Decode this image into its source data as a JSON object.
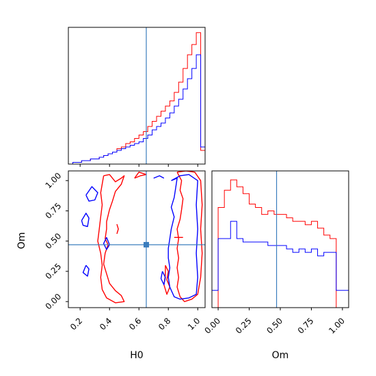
{
  "colors": {
    "red": "#ff0000",
    "blue": "#0000ff",
    "truth": "#3b7dbd",
    "axes": "#000000"
  },
  "chart_data": [
    {
      "type": "histogram",
      "panel": "H0 marginal",
      "xlim": [
        0.12,
        1.05
      ],
      "truth": 0.65,
      "bin_edges": [
        0.12,
        0.15,
        0.18,
        0.21,
        0.24,
        0.27,
        0.3,
        0.33,
        0.36,
        0.39,
        0.42,
        0.45,
        0.48,
        0.51,
        0.54,
        0.57,
        0.6,
        0.63,
        0.66,
        0.69,
        0.72,
        0.75,
        0.78,
        0.81,
        0.84,
        0.87,
        0.9,
        0.93,
        0.96,
        0.99,
        1.02,
        1.05
      ],
      "series": [
        {
          "name": "",
          "color": "red",
          "values": [
            0,
            1,
            1,
            2,
            2,
            3,
            3,
            4,
            5,
            6,
            7,
            9,
            10,
            12,
            13,
            15,
            17,
            19,
            22,
            25,
            28,
            31,
            34,
            37,
            42,
            48,
            56,
            64,
            70,
            77,
            8
          ]
        },
        {
          "name": "",
          "color": "blue",
          "values": [
            0,
            1,
            1,
            2,
            2,
            3,
            3,
            4,
            5,
            6,
            7,
            8,
            9,
            10,
            11,
            12,
            13,
            15,
            17,
            20,
            22,
            24,
            27,
            30,
            34,
            38,
            44,
            50,
            56,
            64,
            10
          ]
        }
      ],
      "xticks": [
        0.2,
        0.4,
        0.6,
        0.8,
        1.0
      ]
    },
    {
      "type": "contour",
      "panel": "H0 vs Om",
      "xlabel": "H0",
      "ylabel": "Om",
      "xlim": [
        0.12,
        1.05
      ],
      "ylim": [
        -0.05,
        1.08
      ],
      "xticks": [
        0.2,
        0.4,
        0.6,
        0.8,
        1.0
      ],
      "xtick_labels": [
        "0.2",
        "0.4",
        "0.6",
        "0.8",
        "1.0"
      ],
      "yticks": [
        0.0,
        0.25,
        0.5,
        0.75,
        1.0
      ],
      "ytick_labels": [
        "0.00",
        "0.25",
        "0.50",
        "0.75",
        "1.00"
      ],
      "truth": {
        "x": 0.65,
        "y": 0.47
      },
      "contours": [
        {
          "color": "red",
          "points": [
            [
              0.36,
              1.04
            ],
            [
              0.4,
              1.05
            ],
            [
              0.44,
              0.99
            ],
            [
              0.48,
              1.02
            ],
            [
              0.5,
              1.04
            ],
            [
              0.48,
              0.97
            ],
            [
              0.44,
              0.91
            ],
            [
              0.42,
              0.83
            ],
            [
              0.4,
              0.76
            ],
            [
              0.38,
              0.66
            ],
            [
              0.38,
              0.6
            ],
            [
              0.37,
              0.52
            ],
            [
              0.39,
              0.47
            ],
            [
              0.37,
              0.4
            ],
            [
              0.36,
              0.31
            ],
            [
              0.38,
              0.23
            ],
            [
              0.4,
              0.15
            ],
            [
              0.44,
              0.09
            ],
            [
              0.48,
              0.05
            ],
            [
              0.5,
              0.0
            ],
            [
              0.44,
              -0.01
            ],
            [
              0.38,
              0.03
            ],
            [
              0.35,
              0.1
            ],
            [
              0.34,
              0.2
            ],
            [
              0.35,
              0.3
            ],
            [
              0.34,
              0.4
            ],
            [
              0.32,
              0.5
            ],
            [
              0.33,
              0.6
            ],
            [
              0.34,
              0.7
            ],
            [
              0.35,
              0.8
            ],
            [
              0.34,
              0.9
            ],
            [
              0.36,
              1.04
            ]
          ]
        },
        {
          "color": "red",
          "points": [
            [
              0.57,
              1.02
            ],
            [
              0.61,
              1.04
            ],
            [
              0.65,
              1.05
            ],
            [
              0.6,
              1.07
            ],
            [
              0.57,
              1.02
            ]
          ]
        },
        {
          "color": "red",
          "points": [
            [
              0.86,
              1.07
            ],
            [
              0.89,
              1.0
            ],
            [
              0.88,
              0.92
            ],
            [
              0.9,
              0.85
            ],
            [
              0.89,
              0.76
            ],
            [
              0.88,
              0.68
            ],
            [
              0.86,
              0.6
            ],
            [
              0.87,
              0.52
            ],
            [
              0.86,
              0.44
            ],
            [
              0.87,
              0.36
            ],
            [
              0.86,
              0.28
            ],
            [
              0.87,
              0.2
            ],
            [
              0.86,
              0.12
            ],
            [
              0.88,
              0.04
            ],
            [
              0.91,
              0.0
            ],
            [
              0.96,
              0.02
            ],
            [
              1.0,
              0.06
            ],
            [
              1.02,
              0.2
            ],
            [
              1.03,
              0.4
            ],
            [
              1.02,
              0.6
            ],
            [
              1.03,
              0.8
            ],
            [
              1.02,
              1.0
            ],
            [
              0.98,
              1.07
            ],
            [
              0.92,
              1.08
            ],
            [
              0.86,
              1.07
            ]
          ]
        },
        {
          "color": "red",
          "points": [
            [
              0.78,
              0.3
            ],
            [
              0.8,
              0.25
            ],
            [
              0.79,
              0.18
            ],
            [
              0.81,
              0.12
            ],
            [
              0.79,
              0.06
            ],
            [
              0.77,
              0.14
            ],
            [
              0.78,
              0.22
            ],
            [
              0.78,
              0.3
            ]
          ]
        },
        {
          "color": "red",
          "points": [
            [
              0.84,
              0.53
            ],
            [
              0.9,
              0.53
            ]
          ]
        },
        {
          "color": "red",
          "points": [
            [
              0.45,
              0.64
            ],
            [
              0.46,
              0.6
            ],
            [
              0.45,
              0.56
            ]
          ]
        },
        {
          "color": "blue",
          "points": [
            [
              0.24,
              0.88
            ],
            [
              0.28,
              0.95
            ],
            [
              0.32,
              0.9
            ],
            [
              0.3,
              0.84
            ],
            [
              0.26,
              0.83
            ],
            [
              0.24,
              0.88
            ]
          ]
        },
        {
          "color": "blue",
          "points": [
            [
              0.21,
              0.67
            ],
            [
              0.24,
              0.73
            ],
            [
              0.26,
              0.69
            ],
            [
              0.25,
              0.62
            ],
            [
              0.22,
              0.63
            ],
            [
              0.21,
              0.67
            ]
          ]
        },
        {
          "color": "blue",
          "points": [
            [
              0.24,
              0.3
            ],
            [
              0.26,
              0.27
            ],
            [
              0.25,
              0.21
            ],
            [
              0.22,
              0.24
            ],
            [
              0.24,
              0.3
            ]
          ]
        },
        {
          "color": "blue",
          "points": [
            [
              0.7,
              1.02
            ],
            [
              0.74,
              1.04
            ],
            [
              0.77,
              1.02
            ]
          ]
        },
        {
          "color": "blue",
          "points": [
            [
              0.82,
              1.0
            ],
            [
              0.86,
              1.02
            ],
            [
              0.85,
              0.94
            ],
            [
              0.84,
              0.86
            ],
            [
              0.82,
              0.78
            ],
            [
              0.84,
              0.7
            ],
            [
              0.82,
              0.6
            ],
            [
              0.81,
              0.52
            ],
            [
              0.8,
              0.44
            ],
            [
              0.8,
              0.36
            ],
            [
              0.81,
              0.28
            ],
            [
              0.8,
              0.2
            ],
            [
              0.81,
              0.12
            ],
            [
              0.84,
              0.04
            ],
            [
              0.88,
              0.02
            ],
            [
              0.94,
              0.03
            ],
            [
              0.99,
              0.06
            ],
            [
              1.0,
              0.2
            ],
            [
              0.99,
              0.4
            ],
            [
              1.0,
              0.6
            ],
            [
              0.99,
              0.8
            ],
            [
              1.0,
              1.0
            ],
            [
              0.94,
              1.05
            ],
            [
              0.88,
              1.04
            ],
            [
              0.82,
              1.0
            ]
          ]
        },
        {
          "color": "blue",
          "points": [
            [
              0.38,
              0.53
            ],
            [
              0.4,
              0.47
            ],
            [
              0.38,
              0.43
            ],
            [
              0.36,
              0.48
            ],
            [
              0.38,
              0.53
            ]
          ]
        },
        {
          "color": "blue",
          "points": [
            [
              0.76,
              0.25
            ],
            [
              0.78,
              0.2
            ],
            [
              0.77,
              0.14
            ],
            [
              0.75,
              0.19
            ],
            [
              0.76,
              0.25
            ]
          ]
        }
      ]
    },
    {
      "type": "histogram",
      "panel": "Om marginal",
      "xlabel": "Om",
      "xlim": [
        -0.05,
        1.05
      ],
      "truth": 0.47,
      "xticks": [
        0.0,
        0.25,
        0.5,
        0.75,
        1.0
      ],
      "xtick_labels": [
        "0.00",
        "0.25",
        "0.50",
        "0.75",
        "1.00"
      ],
      "bin_edges": [
        -0.05,
        0.0,
        0.05,
        0.1,
        0.15,
        0.2,
        0.25,
        0.3,
        0.35,
        0.4,
        0.45,
        0.5,
        0.55,
        0.6,
        0.65,
        0.7,
        0.75,
        0.8,
        0.85,
        0.9,
        0.95,
        1.0,
        1.05
      ],
      "series": [
        {
          "name": "",
          "color": "red",
          "values": [
            0,
            29,
            34,
            37,
            35,
            33,
            30,
            29,
            27,
            28,
            27,
            27,
            26,
            25,
            25,
            24,
            25,
            23,
            21,
            20,
            0,
            0
          ]
        },
        {
          "name": "",
          "color": "blue",
          "values": [
            5,
            20,
            20,
            25,
            20,
            19,
            19,
            19,
            19,
            18,
            18,
            18,
            17,
            16,
            17,
            16,
            17,
            15,
            16,
            16,
            5,
            5
          ]
        }
      ]
    }
  ]
}
